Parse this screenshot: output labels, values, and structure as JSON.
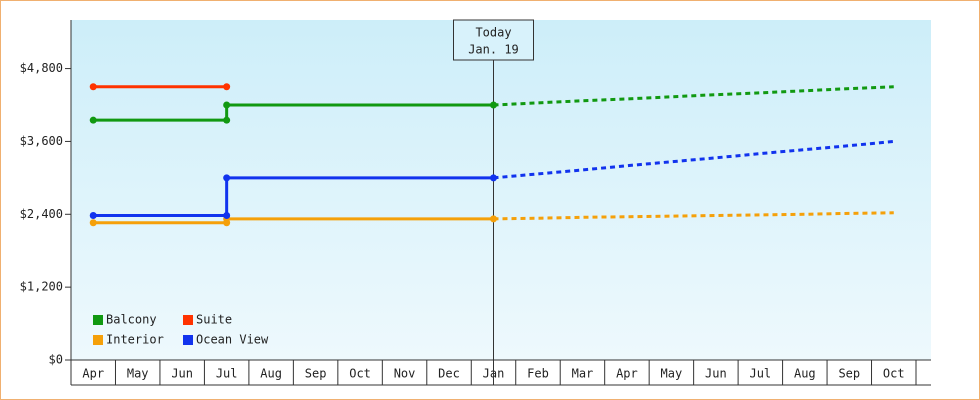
{
  "chart_data": {
    "type": "step-line",
    "annotation": {
      "title": "Today",
      "date": "Jan. 19"
    },
    "categories": [
      "Apr",
      "May",
      "Jun",
      "Jul",
      "Aug",
      "Sep",
      "Oct",
      "Nov",
      "Dec",
      "Jan",
      "Feb",
      "Mar",
      "Apr",
      "May",
      "Jun",
      "Jul",
      "Aug",
      "Sep",
      "Oct"
    ],
    "series": [
      {
        "name": "Balcony",
        "color": "#119911",
        "values": [
          3950,
          3950,
          3950,
          4200,
          4200,
          4200,
          4200,
          4200,
          4200,
          4200,
          null,
          null,
          null,
          null,
          null,
          null,
          null,
          null,
          null
        ],
        "forecast": [
          null,
          null,
          null,
          null,
          null,
          null,
          null,
          null,
          null,
          4200,
          4235,
          4270,
          4300,
          4335,
          4370,
          4400,
          4435,
          4470,
          4500
        ]
      },
      {
        "name": "Suite",
        "color": "#ff3300",
        "values": [
          4500,
          4500,
          4500,
          4500,
          null,
          null,
          null,
          null,
          null,
          null,
          null,
          null,
          null,
          null,
          null,
          null,
          null,
          null,
          null
        ],
        "forecast": [
          null,
          null,
          null,
          null,
          null,
          null,
          null,
          null,
          null,
          null,
          null,
          null,
          null,
          null,
          null,
          null,
          null,
          null,
          null
        ]
      },
      {
        "name": "Interior",
        "color": "#f5a00a",
        "values": [
          2260,
          2260,
          2260,
          2325,
          2325,
          2325,
          2325,
          2325,
          2325,
          2325,
          null,
          null,
          null,
          null,
          null,
          null,
          null,
          null,
          null
        ],
        "forecast": [
          null,
          null,
          null,
          null,
          null,
          null,
          null,
          null,
          null,
          2325,
          2335,
          2350,
          2360,
          2370,
          2380,
          2390,
          2400,
          2415,
          2425
        ]
      },
      {
        "name": "Ocean View",
        "color": "#1133ee",
        "values": [
          2380,
          2380,
          2380,
          3000,
          3000,
          3000,
          3000,
          3000,
          3000,
          3000,
          null,
          null,
          null,
          null,
          null,
          null,
          null,
          null,
          null
        ],
        "forecast": [
          null,
          null,
          null,
          null,
          null,
          null,
          null,
          null,
          null,
          3000,
          3065,
          3130,
          3200,
          3265,
          3330,
          3400,
          3465,
          3530,
          3600
        ]
      }
    ],
    "ylim": [
      0,
      5600
    ],
    "yticks": [
      {
        "value": 0,
        "label": "$0"
      },
      {
        "value": 1200,
        "label": "$1,200"
      },
      {
        "value": 2400,
        "label": "$2,400"
      },
      {
        "value": 3600,
        "label": "$3,600"
      },
      {
        "value": 4800,
        "label": "$4,800"
      }
    ]
  }
}
